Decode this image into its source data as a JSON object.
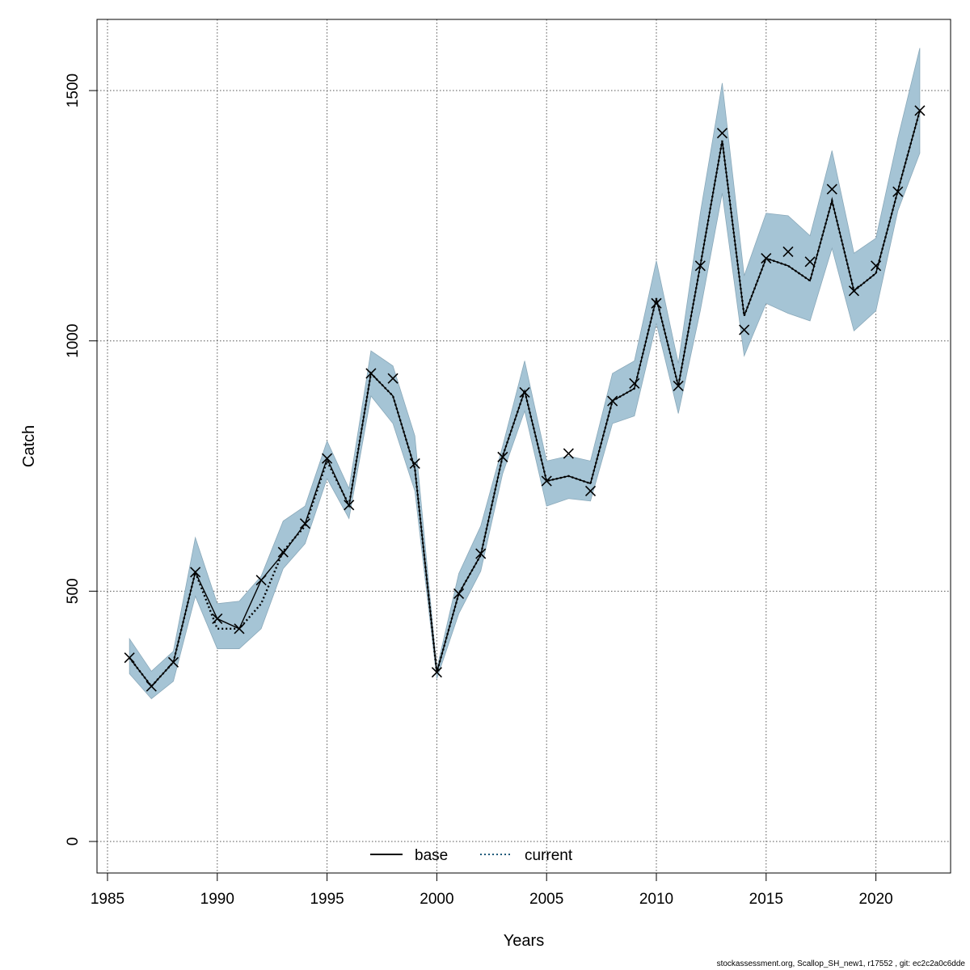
{
  "chart_data": {
    "type": "line",
    "xlabel": "Years",
    "ylabel": "Catch",
    "xlim": [
      1985,
      2023
    ],
    "ylim": [
      -60,
      1640
    ],
    "x_ticks": [
      1985,
      1990,
      1995,
      2000,
      2005,
      2010,
      2015,
      2020
    ],
    "y_ticks": [
      0,
      500,
      1000,
      1500
    ],
    "grid": true,
    "legend_position": "bottom-center",
    "x": [
      1986,
      1987,
      1988,
      1989,
      1990,
      1991,
      1992,
      1993,
      1994,
      1995,
      1996,
      1997,
      1998,
      1999,
      2000,
      2001,
      2002,
      2003,
      2004,
      2005,
      2006,
      2007,
      2008,
      2009,
      2010,
      2011,
      2012,
      2013,
      2014,
      2015,
      2016,
      2017,
      2018,
      2019,
      2020,
      2021,
      2022
    ],
    "series": [
      {
        "name": "base",
        "style": "solid",
        "color": "#000000",
        "values": [
          367,
          310,
          358,
          538,
          445,
          425,
          522,
          575,
          635,
          765,
          670,
          935,
          890,
          745,
          338,
          495,
          572,
          770,
          900,
          720,
          730,
          715,
          880,
          905,
          1085,
          910,
          1150,
          1400,
          1050,
          1165,
          1150,
          1120,
          1280,
          1100,
          1135,
          1300,
          1460
        ]
      },
      {
        "name": "current",
        "style": "dotted",
        "color": "#000000",
        "values": [
          367,
          310,
          358,
          538,
          425,
          425,
          475,
          580,
          630,
          760,
          672,
          935,
          890,
          745,
          338,
          495,
          572,
          770,
          900,
          720,
          730,
          715,
          880,
          905,
          1085,
          910,
          1150,
          1400,
          1050,
          1165,
          1150,
          1120,
          1280,
          1100,
          1135,
          1300,
          1460
        ]
      }
    ],
    "uncertainty_band": {
      "color": "#a5c4d5",
      "upper": [
        405,
        340,
        380,
        607,
        475,
        480,
        530,
        640,
        670,
        800,
        705,
        980,
        950,
        810,
        345,
        535,
        630,
        790,
        960,
        760,
        770,
        760,
        935,
        960,
        1160,
        955,
        1255,
        1515,
        1130,
        1255,
        1250,
        1210,
        1380,
        1175,
        1205,
        1405,
        1585
      ],
      "lower": [
        335,
        285,
        320,
        490,
        385,
        385,
        425,
        545,
        595,
        725,
        645,
        890,
        835,
        700,
        325,
        455,
        540,
        735,
        860,
        670,
        685,
        680,
        835,
        850,
        1035,
        855,
        1060,
        1295,
        970,
        1075,
        1055,
        1040,
        1185,
        1020,
        1060,
        1260,
        1375
      ]
    },
    "observations": {
      "marker": "x",
      "values": [
        367,
        310,
        358,
        538,
        445,
        425,
        522,
        578,
        635,
        765,
        672,
        935,
        925,
        755,
        338,
        495,
        575,
        768,
        897,
        720,
        775,
        700,
        880,
        915,
        1075,
        910,
        1150,
        1415,
        1022,
        1165,
        1178,
        1158,
        1303,
        1100,
        1150,
        1298,
        1460
      ]
    }
  },
  "footer": "stockassessment.org, Scallop_SH_new1, r17552 , git: ec2c2a0c6dde"
}
